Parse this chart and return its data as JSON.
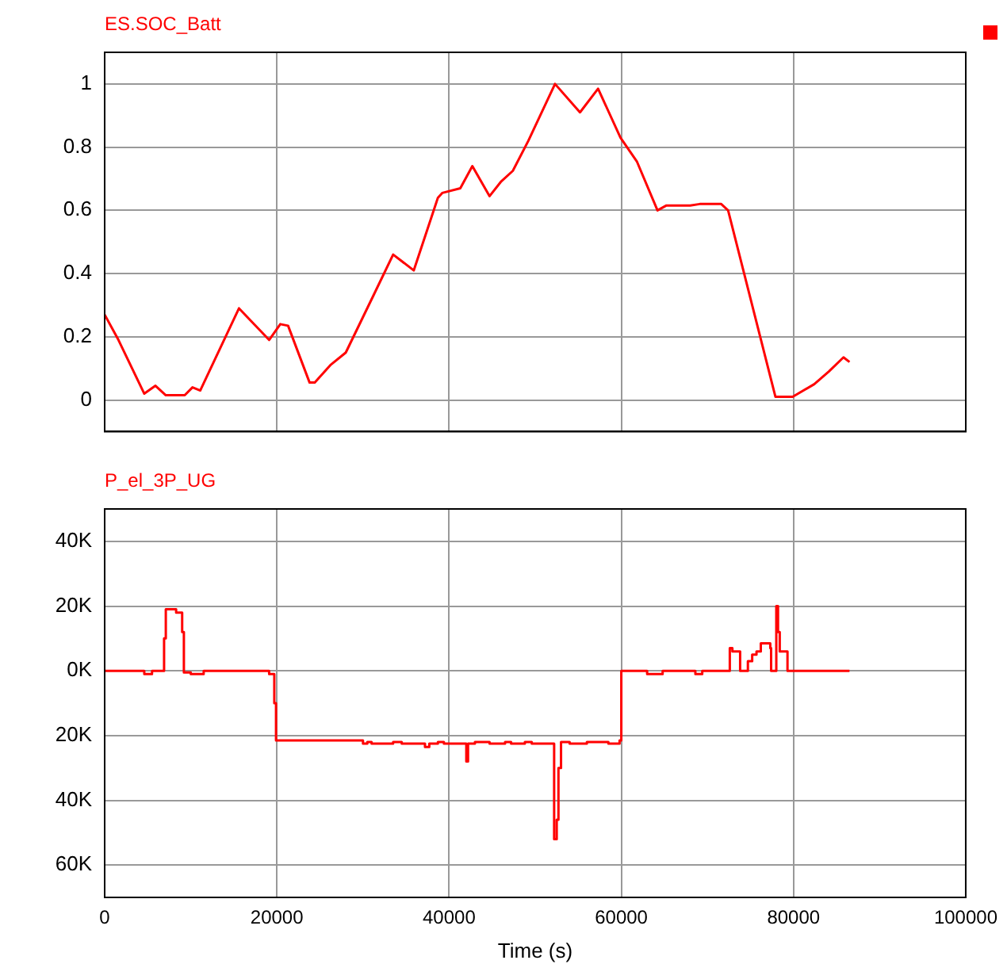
{
  "chart_data": [
    {
      "type": "line",
      "title": "ES.SOC_Batt",
      "color": "#ff0000",
      "marker": "none",
      "grid": true,
      "legend": false,
      "tick_labels": "y",
      "x": [
        0,
        1600,
        4600,
        5900,
        7100,
        9300,
        10200,
        11100,
        15600,
        19100,
        20400,
        21300,
        23800,
        24400,
        26200,
        28000,
        31200,
        33500,
        35900,
        38700,
        39200,
        41300,
        42700,
        44700,
        46000,
        47400,
        49200,
        52300,
        55200,
        57300,
        59900,
        61800,
        64200,
        65200,
        68000,
        69100,
        71600,
        72400,
        77900,
        79900,
        82400,
        84100,
        85800,
        86500
      ],
      "values": [
        0.27,
        0.19,
        0.02,
        0.045,
        0.015,
        0.015,
        0.04,
        0.03,
        0.29,
        0.19,
        0.24,
        0.235,
        0.055,
        0.055,
        0.11,
        0.15,
        0.33,
        0.46,
        0.41,
        0.64,
        0.655,
        0.67,
        0.74,
        0.645,
        0.69,
        0.725,
        0.82,
        1.0,
        0.91,
        0.985,
        0.83,
        0.755,
        0.6,
        0.615,
        0.615,
        0.62,
        0.62,
        0.6,
        0.01,
        0.01,
        0.05,
        0.09,
        0.135,
        0.12
      ],
      "xlim": [
        0,
        100000
      ],
      "xticks": [
        0,
        20000,
        40000,
        60000,
        80000,
        100000
      ],
      "ylim": [
        -0.1,
        1.1
      ],
      "yticks": [
        0,
        0.2,
        0.4,
        0.6,
        0.8,
        1
      ]
    },
    {
      "type": "step",
      "title": "P_el_3P_UG",
      "xlabel": "Time (s)",
      "color": "#ff0000",
      "marker": "none",
      "grid": true,
      "legend": false,
      "x": [
        0,
        4600,
        5500,
        6900,
        7100,
        8300,
        9000,
        9200,
        10000,
        11500,
        19100,
        19700,
        19900,
        30000,
        30500,
        31000,
        33500,
        34500,
        37200,
        37700,
        38700,
        39400,
        42000,
        42200,
        43000,
        44700,
        46500,
        47200,
        48800,
        49600,
        52200,
        52500,
        52700,
        53000,
        54000,
        56000,
        58500,
        59800,
        60000,
        63000,
        64800,
        68600,
        69400,
        72600,
        72900,
        73800,
        74700,
        75200,
        75700,
        76200,
        77300,
        77400,
        78000,
        78200,
        78400,
        79300,
        86500
      ],
      "values": [
        0,
        -1000,
        0,
        10000,
        19000,
        18000,
        12000,
        -500,
        -1000,
        0,
        -1000,
        -10000,
        -21500,
        -22500,
        -22000,
        -22500,
        -22000,
        -22500,
        -23500,
        -22500,
        -22000,
        -22500,
        -28000,
        -22500,
        -22000,
        -22500,
        -22000,
        -22500,
        -22000,
        -22500,
        -52000,
        -46000,
        -30000,
        -22000,
        -22500,
        -22000,
        -22500,
        -21500,
        0,
        -1000,
        0,
        -1000,
        0,
        7000,
        6000,
        0,
        3000,
        5000,
        6000,
        8500,
        7000,
        0,
        20000,
        12000,
        6000,
        0,
        0
      ],
      "xlim": [
        0,
        100000
      ],
      "xticks": [
        0,
        20000,
        40000,
        60000,
        80000,
        100000
      ],
      "ylim": [
        -70000,
        50000
      ],
      "yticks": [
        {
          "value": 40000,
          "label": "40K"
        },
        {
          "value": 20000,
          "label": "20K"
        },
        {
          "value": 0,
          "label": "0K"
        },
        {
          "value": -20000,
          "label": "20K"
        },
        {
          "value": -40000,
          "label": "40K"
        },
        {
          "value": -60000,
          "label": "60K"
        }
      ]
    }
  ]
}
